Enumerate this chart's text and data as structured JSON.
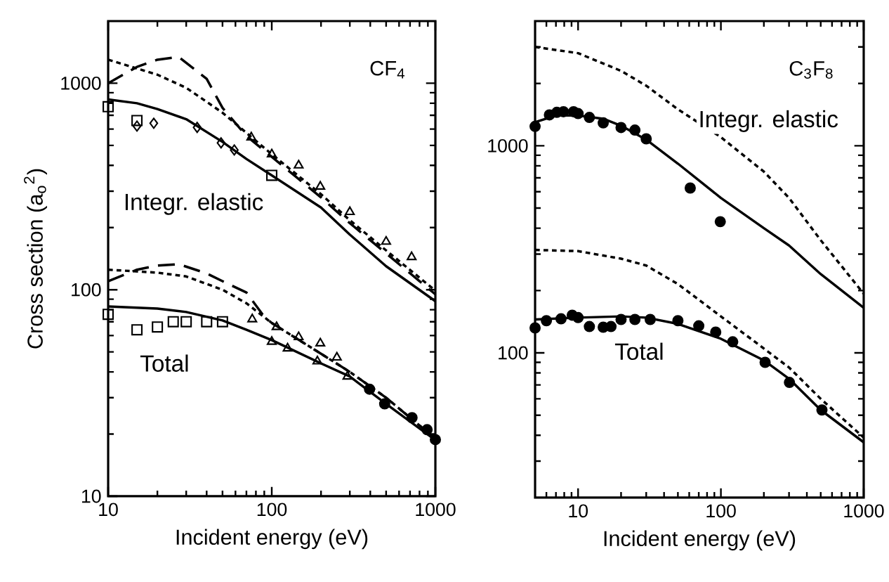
{
  "chart_data": [
    {
      "type": "line",
      "title": "CF$_{4}$",
      "xlabel": "Incident energy (eV)",
      "ylabel": "Cross section (a$_{o}$$^{2}$)",
      "log": "xy",
      "xlim": [
        10,
        1000
      ],
      "ylim": [
        10,
        2000
      ],
      "xticks": [
        10,
        100,
        1000
      ],
      "yticks": [
        10,
        100,
        1000
      ],
      "annotations": [
        "Integr. elastic",
        "Total"
      ],
      "series": [
        {
          "line_style": "solid",
          "color": "#000000",
          "x": [
            10,
            15,
            20,
            30,
            50,
            70,
            100,
            200,
            300,
            500,
            1000
          ],
          "values": [
            835,
            800,
            750,
            670,
            520,
            430,
            358,
            250,
            185,
            130,
            88
          ]
        },
        {
          "line_style": "dotted",
          "color": "#000000",
          "x": [
            10,
            20,
            30,
            50,
            100,
            200,
            300,
            500,
            1000
          ],
          "values": [
            1300,
            1100,
            950,
            720,
            453,
            290,
            217,
            155,
            99
          ]
        },
        {
          "line_style": "dashed",
          "color": "#000000",
          "x": [
            10,
            15,
            20,
            27,
            40,
            50,
            70,
            100,
            200,
            300,
            500,
            1000
          ],
          "values": [
            1000,
            1200,
            1300,
            1340,
            1050,
            760,
            556,
            440,
            280,
            210,
            150,
            95
          ]
        },
        {
          "type": "scatter",
          "marker": "square",
          "color": "#000000",
          "x": [
            10,
            15,
            100
          ],
          "values": [
            770,
            660,
            358
          ]
        },
        {
          "type": "scatter",
          "marker": "diamond",
          "color": "#000000",
          "x": [
            15,
            19,
            35,
            49,
            59
          ],
          "values": [
            620,
            640,
            611,
            514,
            475
          ]
        },
        {
          "type": "scatter",
          "marker": "triangle",
          "color": "#000000",
          "x": [
            75,
            100,
            146,
            198,
            300,
            500,
            716
          ],
          "values": [
            547,
            453,
            400,
            316,
            238,
            171,
            144
          ]
        },
        {
          "line_style": "solid",
          "color": "#000000",
          "x": [
            10,
            20,
            30,
            50,
            70,
            100,
            200,
            300,
            500,
            1000
          ],
          "values": [
            83,
            81,
            78,
            71,
            64,
            57,
            44,
            38,
            28,
            18.7
          ]
        },
        {
          "line_style": "dotted",
          "color": "#000000",
          "x": [
            10,
            20,
            30,
            50,
            70,
            100,
            200,
            300,
            500,
            1000
          ],
          "values": [
            125,
            121,
            116,
            100,
            86,
            69,
            49,
            40,
            30,
            19
          ]
        },
        {
          "line_style": "dashed",
          "color": "#000000",
          "x": [
            10,
            15,
            20,
            27,
            40,
            50,
            70,
            90,
            100,
            200,
            300,
            500,
            1000
          ],
          "values": [
            110,
            125,
            131,
            133,
            120,
            110,
            97,
            74,
            69,
            49,
            40,
            30,
            19
          ]
        },
        {
          "type": "scatter",
          "marker": "square",
          "color": "#000000",
          "x": [
            10,
            15,
            20,
            25,
            30,
            40,
            50
          ],
          "values": [
            76,
            64,
            66,
            70,
            70,
            70,
            70
          ]
        },
        {
          "type": "scatter",
          "marker": "triangle",
          "color": "#000000",
          "x": [
            76,
            107,
            146,
            198,
            250
          ],
          "values": [
            72,
            66,
            59,
            55,
            47
          ]
        },
        {
          "type": "scatter",
          "marker": "triangle",
          "color": "#000000",
          "x": [
            100,
            125,
            190,
            290
          ],
          "values": [
            56,
            52,
            45,
            38
          ]
        },
        {
          "type": "scatter",
          "marker": "circle",
          "color": "#000000",
          "x": [
            396,
            490,
            720,
            890,
            1000
          ],
          "values": [
            33,
            28,
            24,
            21,
            18.8
          ]
        }
      ]
    },
    {
      "type": "line",
      "title": "C$_{3}$F$_{8}$",
      "xlabel": "Incident energy (eV)",
      "log": "xy",
      "xlim": [
        5,
        1000
      ],
      "ylim": [
        20,
        4000
      ],
      "xticks": [
        10,
        100,
        1000
      ],
      "yticks": [
        100,
        1000
      ],
      "annotations": [
        "Integr. elastic",
        "Total"
      ],
      "series": [
        {
          "line_style": "solid",
          "color": "#000000",
          "x": [
            5,
            7,
            10,
            15,
            20,
            30,
            50,
            100,
            200,
            300,
            500,
            1000
          ],
          "values": [
            1300,
            1400,
            1400,
            1350,
            1250,
            1070,
            820,
            560,
            400,
            330,
            240,
            165
          ]
        },
        {
          "line_style": "dotted",
          "color": "#000000",
          "x": [
            5,
            10,
            20,
            30,
            50,
            100,
            200,
            300,
            500,
            1000
          ],
          "values": [
            3000,
            2800,
            2300,
            1950,
            1500,
            1100,
            750,
            560,
            350,
            193
          ]
        },
        {
          "type": "scatter",
          "marker": "circle",
          "color": "#000000",
          "x": [
            5,
            6.3,
            7.1,
            7.9,
            9.3,
            10,
            12,
            15,
            20,
            25,
            30,
            61,
            99
          ],
          "values": [
            1240,
            1410,
            1450,
            1460,
            1460,
            1430,
            1370,
            1290,
            1225,
            1190,
            1080,
            625,
            430
          ]
        },
        {
          "line_style": "solid",
          "color": "#000000",
          "x": [
            5,
            10,
            20,
            30,
            50,
            100,
            200,
            300,
            500,
            1000
          ],
          "values": [
            145,
            148,
            150,
            148,
            138,
            117,
            92,
            75,
            53,
            37
          ]
        },
        {
          "line_style": "dotted",
          "color": "#000000",
          "x": [
            5,
            10,
            20,
            30,
            50,
            100,
            200,
            300,
            500,
            1000
          ],
          "values": [
            314,
            310,
            285,
            264,
            215,
            150,
            105,
            85,
            60,
            39
          ]
        },
        {
          "type": "scatter",
          "marker": "circle",
          "color": "#000000",
          "x": [
            5,
            6,
            7.6,
            9.1,
            10,
            12,
            15,
            17,
            20,
            25,
            32,
            50,
            70,
            92,
            121,
            204,
            302,
            510
          ],
          "values": [
            132,
            143,
            146,
            152,
            148,
            134,
            133,
            134,
            145,
            145,
            145,
            143,
            135,
            126,
            113,
            90,
            72,
            53
          ]
        }
      ]
    }
  ]
}
